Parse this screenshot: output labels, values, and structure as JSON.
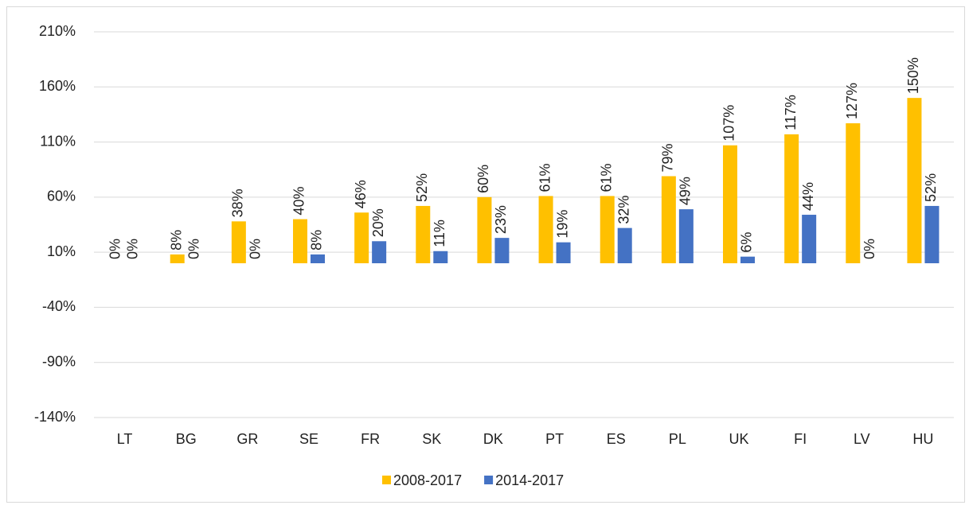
{
  "chart_data": {
    "type": "bar",
    "categories": [
      "LT",
      "BG",
      "GR",
      "SE",
      "FR",
      "SK",
      "DK",
      "PT",
      "ES",
      "PL",
      "UK",
      "FI",
      "LV",
      "HU"
    ],
    "series": [
      {
        "name": "2008-2017",
        "color": "#ffc000",
        "values": [
          0,
          8,
          38,
          40,
          46,
          52,
          60,
          61,
          61,
          79,
          107,
          117,
          127,
          150
        ],
        "value_labels": [
          "0%",
          "8%",
          "38%",
          "40%",
          "46%",
          "52%",
          "60%",
          "61%",
          "61%",
          "79%",
          "107%",
          "117%",
          "127%",
          "150%"
        ]
      },
      {
        "name": "2014-2017",
        "color": "#4472c4",
        "values": [
          0,
          0,
          0,
          8,
          20,
          11,
          23,
          19,
          32,
          49,
          6,
          44,
          0,
          52
        ],
        "value_labels": [
          "0%",
          "0%",
          "0%",
          "8%",
          "20%",
          "11%",
          "23%",
          "19%",
          "32%",
          "49%",
          "6%",
          "44%",
          "0%",
          "52%"
        ]
      }
    ],
    "ylim": [
      -140,
      210
    ],
    "yticks": [
      {
        "value": -140,
        "label": "-140%"
      },
      {
        "value": -90,
        "label": "-90%"
      },
      {
        "value": -40,
        "label": "-40%"
      },
      {
        "value": 10,
        "label": "10%"
      },
      {
        "value": 60,
        "label": "60%"
      },
      {
        "value": 110,
        "label": "110%"
      },
      {
        "value": 160,
        "label": "160%"
      },
      {
        "value": 210,
        "label": "210%"
      }
    ],
    "grid": true,
    "legend": "bottom"
  }
}
